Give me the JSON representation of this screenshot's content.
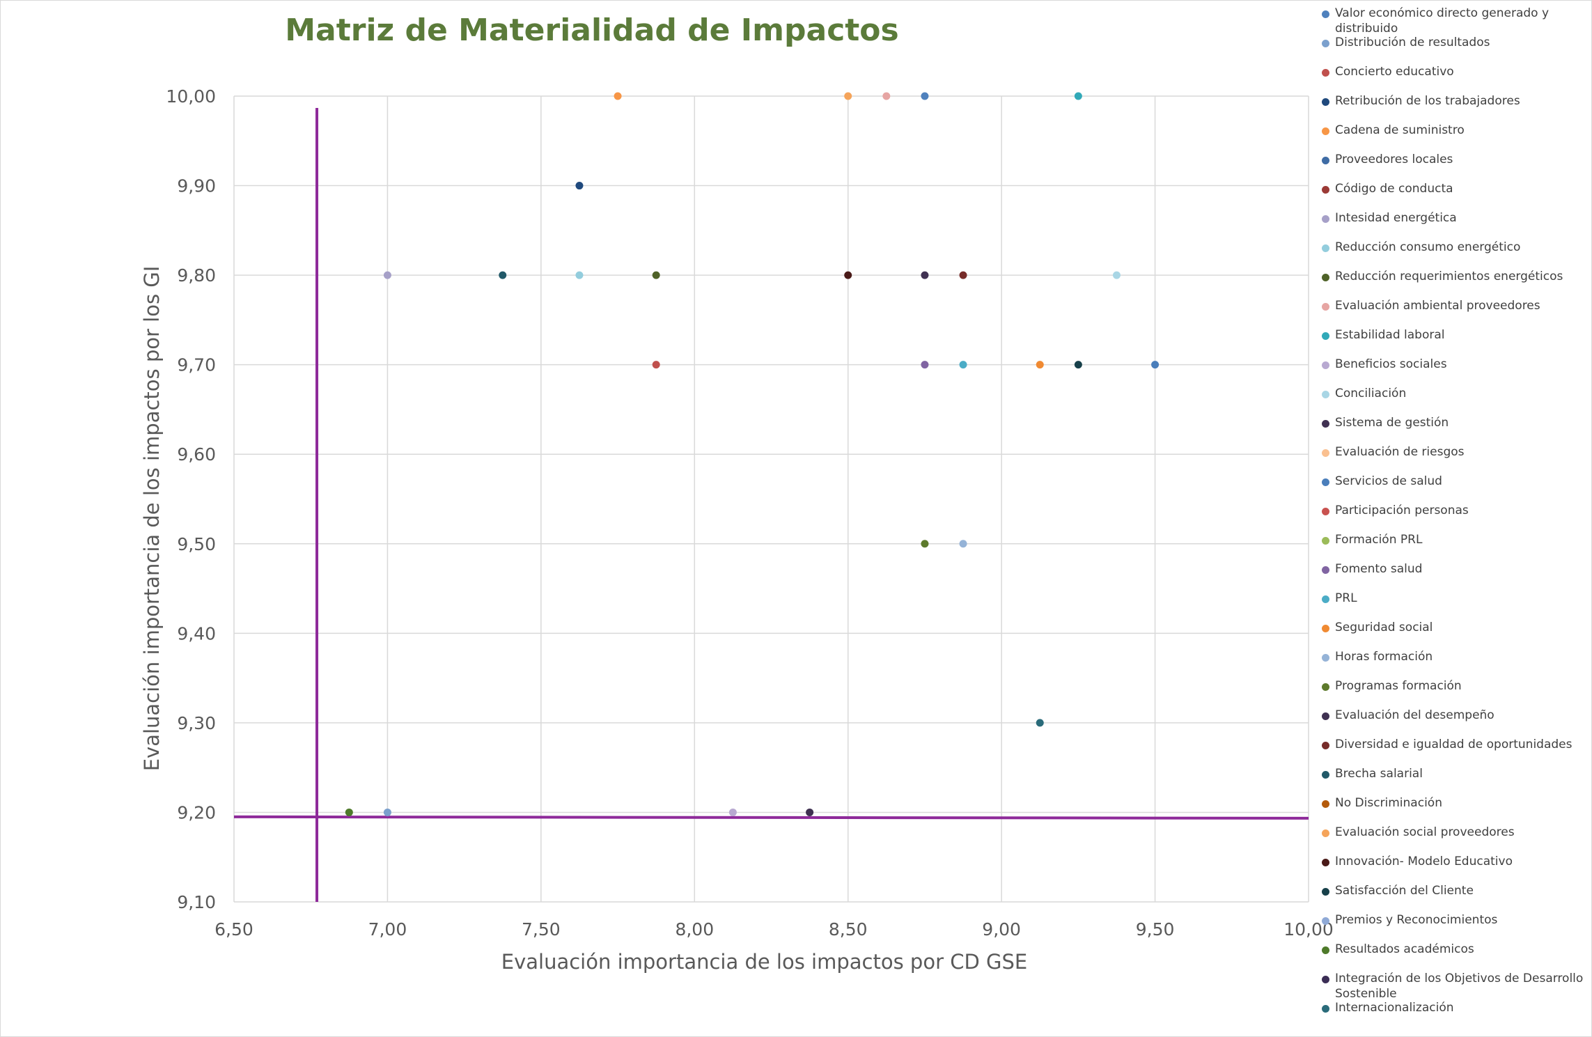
{
  "title": "Matriz de Materialidad de Impactos",
  "colors": {
    "title": "#5b7b3a",
    "threshold": "#8e2a9a",
    "grid": "#d9d9d9",
    "text": "#595959"
  },
  "chart_data": {
    "type": "scatter",
    "title": "Matriz de Materialidad de Impactos",
    "xlabel": "Evaluación importancia de los impactos por CD GSE",
    "ylabel": "Evaluación importancia de los impactos por los GI",
    "xlim": [
      6.5,
      10.0
    ],
    "ylim": [
      9.1,
      10.0
    ],
    "x_ticks": [
      "6,50",
      "7,00",
      "7,50",
      "8,00",
      "8,50",
      "9,00",
      "9,50",
      "10,00"
    ],
    "y_ticks": [
      "9,10",
      "9,20",
      "9,30",
      "9,40",
      "9,50",
      "9,60",
      "9,70",
      "9,80",
      "9,90",
      "10,00"
    ],
    "grid": true,
    "legend_position": "right",
    "threshold_lines": {
      "x": 6.77,
      "y": 9.195
    },
    "series": [
      {
        "name": "Valor económico directo generado y distribuido",
        "color": "#4f81bd",
        "points": [
          [
            8.75,
            10.0
          ]
        ]
      },
      {
        "name": "Distribución de resultados",
        "color": "#7ba0cd",
        "points": [
          [
            7.0,
            9.2
          ]
        ]
      },
      {
        "name": "Concierto educativo",
        "color": "#c0504d",
        "points": [
          [
            7.875,
            9.7
          ]
        ]
      },
      {
        "name": "Retribución de los trabajadores",
        "color": "#1f497d",
        "points": [
          [
            7.625,
            9.9
          ]
        ]
      },
      {
        "name": "Cadena de suministro",
        "color": "#f79646",
        "points": [
          [
            7.75,
            10.0
          ]
        ]
      },
      {
        "name": "Proveedores locales",
        "color": "#3f6ca5",
        "points": []
      },
      {
        "name": "Código de conducta",
        "color": "#9b3a36",
        "points": []
      },
      {
        "name": "Intesidad energética",
        "color": "#a6a0c8",
        "points": [
          [
            7.0,
            9.8
          ]
        ]
      },
      {
        "name": "Reducción consumo energético",
        "color": "#93cddd",
        "points": [
          [
            7.625,
            9.8
          ]
        ]
      },
      {
        "name": "Reducción requerimientos energéticos",
        "color": "#4f6228",
        "points": [
          [
            7.875,
            9.8
          ]
        ]
      },
      {
        "name": "Evaluación ambiental proveedores",
        "color": "#e6a5a3",
        "points": [
          [
            8.625,
            10.0
          ]
        ]
      },
      {
        "name": "Estabilidad laboral",
        "color": "#31a9b8",
        "points": [
          [
            9.25,
            10.0
          ]
        ]
      },
      {
        "name": "Beneficios sociales",
        "color": "#b8a9d1",
        "points": [
          [
            8.125,
            9.2
          ]
        ]
      },
      {
        "name": "Conciliación",
        "color": "#a9d6e5",
        "points": [
          [
            9.375,
            9.8
          ]
        ]
      },
      {
        "name": "Sistema de gestión",
        "color": "#403152",
        "points": [
          [
            8.75,
            9.8
          ]
        ]
      },
      {
        "name": "Evaluación de riesgos",
        "color": "#fac090",
        "points": []
      },
      {
        "name": "Servicios de salud",
        "color": "#4a7ebb",
        "points": [
          [
            9.5,
            9.7
          ]
        ]
      },
      {
        "name": "Participación personas",
        "color": "#c9524f",
        "points": []
      },
      {
        "name": "Formación PRL",
        "color": "#9bbb59",
        "points": []
      },
      {
        "name": "Fomento salud",
        "color": "#8064a2",
        "points": [
          [
            8.75,
            9.7
          ]
        ]
      },
      {
        "name": "PRL",
        "color": "#4bacc6",
        "points": [
          [
            8.875,
            9.7
          ]
        ]
      },
      {
        "name": "Seguridad social",
        "color": "#f08a32",
        "points": [
          [
            9.125,
            9.7
          ]
        ]
      },
      {
        "name": "Horas formación",
        "color": "#95b3d7",
        "points": [
          [
            8.875,
            9.5
          ]
        ]
      },
      {
        "name": "Programas formación",
        "color": "#5d7a2c",
        "points": [
          [
            8.75,
            9.5
          ]
        ]
      },
      {
        "name": "Evaluación del desempeño",
        "color": "#3f3151",
        "points": [
          [
            8.375,
            9.2
          ]
        ]
      },
      {
        "name": "Diversidad e igualdad de oportunidades",
        "color": "#772c2a",
        "points": [
          [
            8.875,
            9.8
          ]
        ]
      },
      {
        "name": "Brecha salarial",
        "color": "#215968",
        "points": [
          [
            7.375,
            9.8
          ]
        ]
      },
      {
        "name": "No Discriminación",
        "color": "#b45a0b",
        "points": []
      },
      {
        "name": "Evaluación social proveedores",
        "color": "#f5a45a",
        "points": [
          [
            8.5,
            10.0
          ]
        ]
      },
      {
        "name": "Innovación- Modelo Educativo",
        "color": "#4a1a18",
        "points": [
          [
            8.5,
            9.8
          ]
        ]
      },
      {
        "name": "Satisfacción del Cliente",
        "color": "#17404a",
        "points": [
          [
            9.25,
            9.7
          ]
        ]
      },
      {
        "name": "Premios y Reconocimientos",
        "color": "#8fa9d6",
        "points": []
      },
      {
        "name": "Resultados académicos",
        "color": "#4e7a2a",
        "points": [
          [
            6.875,
            9.2
          ]
        ]
      },
      {
        "name": "Integración de los Objetivos de Desarrollo Sostenible",
        "color": "#3b2d55",
        "points": []
      },
      {
        "name": "Internacionalización",
        "color": "#2a6b7a",
        "points": [
          [
            9.125,
            9.3
          ]
        ]
      }
    ]
  }
}
